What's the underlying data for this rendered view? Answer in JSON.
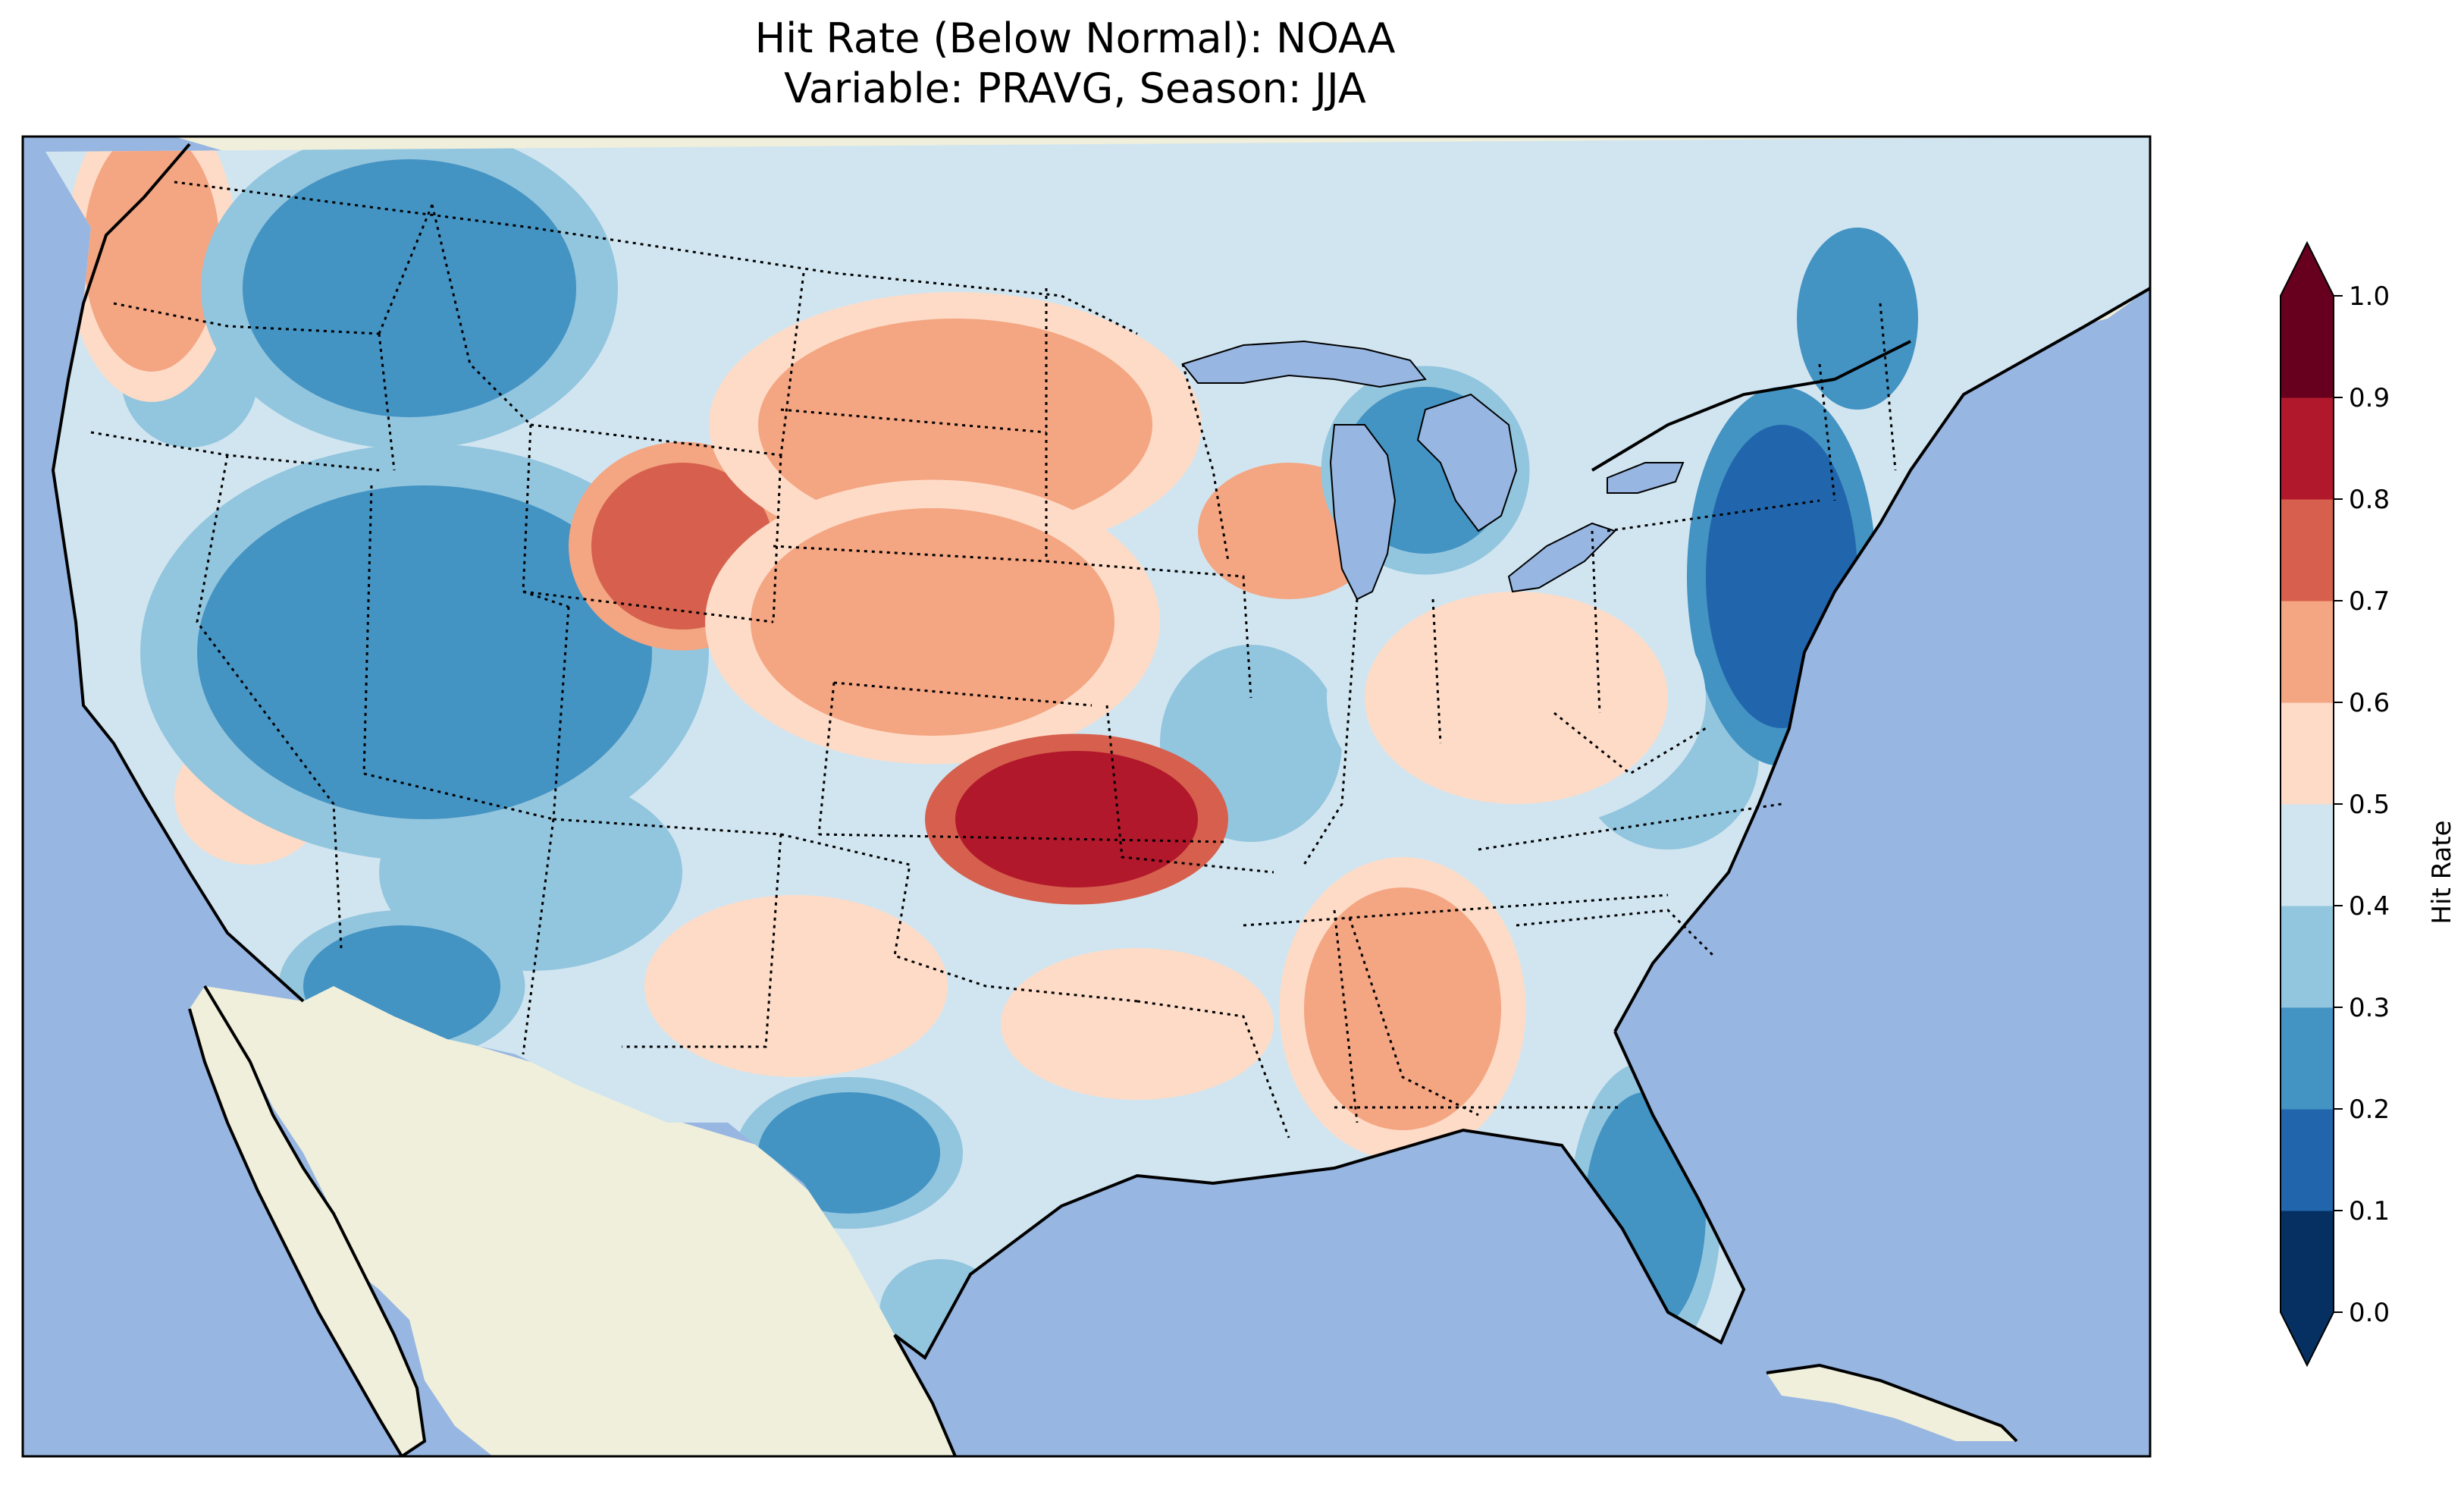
{
  "title": {
    "line1": "Hit Rate (Below Normal): NOAA",
    "line2": "Variable: PRAVG, Season: JJA"
  },
  "map": {
    "ocean_color": "#97b6e1",
    "land_color": "#efefdb",
    "region": "Contiguous United States"
  },
  "colorbar": {
    "label": "Hit Rate",
    "ticks": [
      "0.0",
      "0.1",
      "0.2",
      "0.3",
      "0.4",
      "0.5",
      "0.6",
      "0.7",
      "0.8",
      "0.9",
      "1.0"
    ],
    "colors": [
      "#053061",
      "#2166ac",
      "#4393c3",
      "#92c5de",
      "#d1e5f0",
      "#fddbc7",
      "#f4a582",
      "#d6604d",
      "#b2182b",
      "#67001f"
    ],
    "under_color": "#053061",
    "over_color": "#67001f"
  },
  "chart_data": {
    "type": "heatmap",
    "title": "Hit Rate (Below Normal): NOAA\nVariable: PRAVG, Season: JJA",
    "colorbar_label": "Hit Rate",
    "range": [
      0.0,
      1.0
    ],
    "levels": [
      0.0,
      0.1,
      0.2,
      0.3,
      0.4,
      0.5,
      0.6,
      0.7,
      0.8,
      0.9,
      1.0
    ],
    "extend": "both",
    "regions": [
      {
        "name": "Pacific Northwest coast",
        "value": 0.65
      },
      {
        "name": "Northern Rockies",
        "value": 0.25
      },
      {
        "name": "Great Basin / Utah",
        "value": 0.25
      },
      {
        "name": "Wyoming",
        "value": 0.7
      },
      {
        "name": "Northern Plains",
        "value": 0.65
      },
      {
        "name": "Central Plains / Nebraska",
        "value": 0.65
      },
      {
        "name": "Oklahoma",
        "value": 0.8
      },
      {
        "name": "Southern Arizona",
        "value": 0.2
      },
      {
        "name": "West Texas",
        "value": 0.25
      },
      {
        "name": "South Texas",
        "value": 0.3
      },
      {
        "name": "Great Lakes / Michigan",
        "value": 0.2
      },
      {
        "name": "Mid-Atlantic / New Jersey",
        "value": 0.1
      },
      {
        "name": "Florida",
        "value": 0.25
      },
      {
        "name": "Deep South / Alabama",
        "value": 0.6
      },
      {
        "name": "Ohio Valley",
        "value": 0.5
      }
    ]
  }
}
